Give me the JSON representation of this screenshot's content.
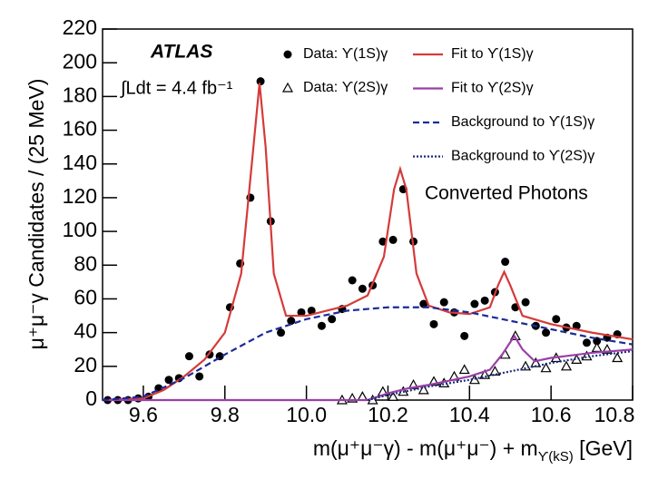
{
  "chart_data": {
    "type": "scatter",
    "title": "ATLAS",
    "luminosity": "∫Ldt = 4.4 fb⁻¹",
    "annotation": "Converted Photons",
    "ylabel": "μ⁺μ⁻γ Candidates / (25 MeV)",
    "xlabel": "m(μ⁺μ⁻γ) - m(μ⁺μ⁻) + m",
    "xlabel_subscript": "ϒ(kS)",
    "xlabel_unit": " [GeV]",
    "xlim": [
      9.5,
      10.8
    ],
    "xticks": [
      9.6,
      9.8,
      {
        "value": 10,
        "label": "10.0"
      },
      10.2,
      10.4,
      10.6,
      10.8
    ],
    "ylim": [
      0,
      220
    ],
    "yticks": [
      0,
      20,
      40,
      60,
      80,
      100,
      120,
      140,
      160,
      180,
      200,
      220
    ],
    "series": [
      {
        "name": "Data: ϒ(1S)γ",
        "color": "#000000",
        "kind": "points",
        "marker": "circle",
        "x": [
          9.5125,
          9.5375,
          9.5625,
          9.5875,
          9.6125,
          9.6375,
          9.6625,
          9.6875,
          9.7125,
          9.7375,
          9.7625,
          9.7875,
          9.8125,
          9.8375,
          9.8625,
          9.8875,
          9.9125,
          9.9375,
          9.9625,
          9.9875,
          10.0125,
          10.0375,
          10.0625,
          10.0875,
          10.1125,
          10.1375,
          10.1625,
          10.1875,
          10.2125,
          10.2375,
          10.2625,
          10.2875,
          10.3125,
          10.3375,
          10.3625,
          10.3875,
          10.4125,
          10.4375,
          10.4625,
          10.4875,
          10.5125,
          10.5375,
          10.5625,
          10.5875,
          10.6125,
          10.6375,
          10.6625,
          10.6875,
          10.7125,
          10.7375,
          10.7625
        ],
        "values": [
          0,
          0,
          0,
          1,
          2,
          7,
          12,
          13,
          26,
          14,
          27,
          26,
          55,
          81,
          120,
          189,
          106,
          40,
          47,
          52,
          53,
          44,
          48,
          54,
          71,
          66,
          68,
          94,
          95,
          125,
          94,
          57,
          45,
          58,
          52,
          38,
          57,
          59,
          64,
          82,
          55,
          58,
          44,
          40,
          48,
          43,
          44,
          34,
          35,
          37,
          39
        ]
      },
      {
        "name": "Data: ϒ(2S)γ",
        "color": "#000000",
        "kind": "points",
        "marker": "triangle",
        "x": [
          10.0875,
          10.1125,
          10.1375,
          10.1625,
          10.1875,
          10.2125,
          10.2375,
          10.2625,
          10.2875,
          10.3125,
          10.3375,
          10.3625,
          10.3875,
          10.4125,
          10.4375,
          10.4625,
          10.4875,
          10.5125,
          10.5375,
          10.5625,
          10.5875,
          10.6125,
          10.6375,
          10.6625,
          10.6875,
          10.7125,
          10.7375,
          10.7625
        ],
        "values": [
          0,
          1,
          2,
          0,
          5,
          2,
          5,
          9,
          6,
          11,
          10,
          14,
          18,
          12,
          15,
          17,
          27,
          38,
          20,
          22,
          19,
          25,
          20,
          24,
          26,
          31,
          30,
          25
        ]
      },
      {
        "name": "Fit to ϒ(1S)γ",
        "color": "#d63a3a",
        "kind": "line",
        "dash": "solid",
        "x": [
          9.5,
          9.6,
          9.65,
          9.7,
          9.75,
          9.8,
          9.84,
          9.87,
          9.885,
          9.9,
          9.92,
          9.95,
          10.0,
          10.05,
          10.1,
          10.15,
          10.19,
          10.215,
          10.23,
          10.245,
          10.27,
          10.3,
          10.35,
          10.4,
          10.45,
          10.47,
          10.485,
          10.5,
          10.53,
          10.6,
          10.7,
          10.8
        ],
        "values": [
          0,
          1,
          6,
          14,
          24,
          40,
          75,
          150,
          188,
          150,
          75,
          50,
          50,
          53,
          56,
          62,
          85,
          125,
          137,
          125,
          75,
          56,
          52,
          51,
          55,
          68,
          76,
          68,
          50,
          45,
          40,
          36
        ]
      },
      {
        "name": "Fit to ϒ(2S)γ",
        "color": "#9b3fa8",
        "kind": "line",
        "dash": "solid",
        "x": [
          9.5,
          10.15,
          10.2,
          10.25,
          10.3,
          10.4,
          10.45,
          10.48,
          10.51,
          10.53,
          10.56,
          10.6,
          10.7,
          10.8
        ],
        "values": [
          0,
          0,
          4,
          7,
          9,
          14,
          18,
          27,
          38,
          30,
          23,
          25,
          28,
          30
        ]
      },
      {
        "name": "Background to ϒ(1S)γ",
        "color": "#1a2a9c",
        "kind": "line",
        "dash": "dashed",
        "x": [
          9.5,
          9.6,
          9.7,
          9.8,
          9.9,
          10.0,
          10.1,
          10.2,
          10.3,
          10.4,
          10.5,
          10.6,
          10.7,
          10.8
        ],
        "values": [
          0,
          2,
          13,
          27,
          40,
          48,
          53,
          55,
          55,
          52,
          47,
          42,
          37,
          33
        ]
      },
      {
        "name": "Background to ϒ(2S)γ",
        "color": "#1a2a7c",
        "kind": "line",
        "dash": "dotted",
        "x": [
          10.15,
          10.2,
          10.3,
          10.4,
          10.5,
          10.6,
          10.7,
          10.8
        ],
        "values": [
          0,
          3,
          8,
          12,
          17,
          22,
          26,
          29
        ]
      }
    ]
  }
}
